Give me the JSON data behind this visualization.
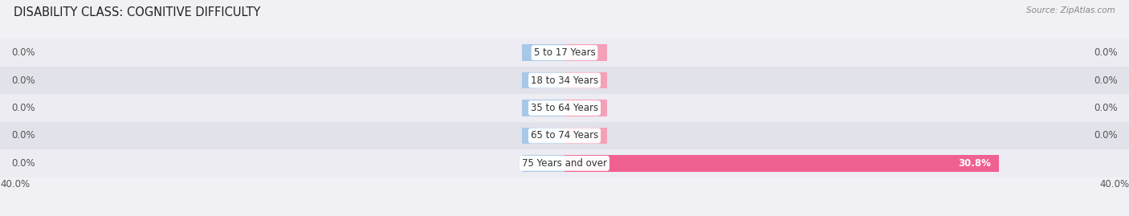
{
  "title": "DISABILITY CLASS: COGNITIVE DIFFICULTY",
  "source": "Source: ZipAtlas.com",
  "categories": [
    "5 to 17 Years",
    "18 to 34 Years",
    "35 to 64 Years",
    "65 to 74 Years",
    "75 Years and over"
  ],
  "male_values": [
    0.0,
    0.0,
    0.0,
    0.0,
    0.0
  ],
  "female_values": [
    0.0,
    0.0,
    0.0,
    0.0,
    30.8
  ],
  "xlim": 40.0,
  "male_color": "#a8c8e8",
  "female_color": "#f4a0b8",
  "female_color_strong": "#f06090",
  "row_bg_colors": [
    "#ececf2",
    "#e2e2ea"
  ],
  "label_color": "#555555",
  "title_color": "#222222",
  "label_fontsize": 8.5,
  "title_fontsize": 10.5,
  "bar_height": 0.6,
  "stub_size": 3.0
}
